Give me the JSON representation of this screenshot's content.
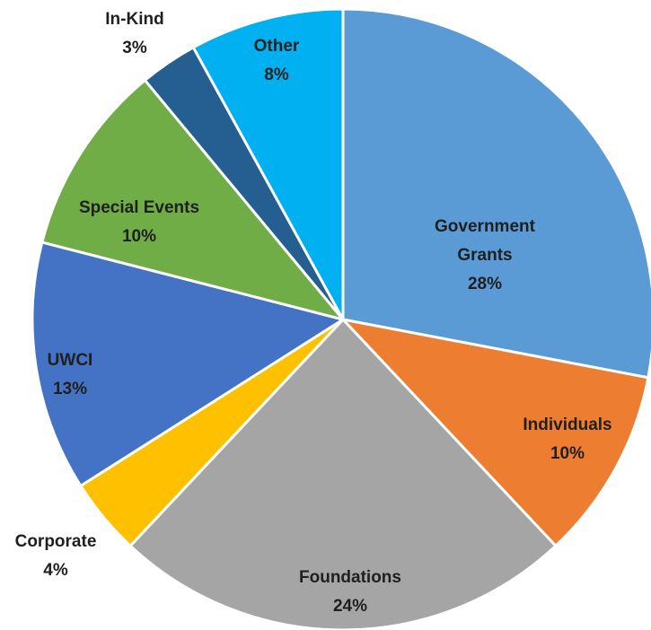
{
  "chart_data": {
    "type": "pie",
    "title": "",
    "start": "12 o'clock",
    "direction": "clockwise",
    "slice_border_color": "#ffffff",
    "label_color": "#1f1f1f",
    "slices": [
      {
        "name": "Government Grants",
        "label_lines": [
          "Government",
          "Grants"
        ],
        "value": 28,
        "value_label": "28%",
        "color": "#5B9BD5"
      },
      {
        "name": "Individuals",
        "label_lines": [
          "Individuals"
        ],
        "value": 10,
        "value_label": "10%",
        "color": "#ED7D31"
      },
      {
        "name": "Foundations",
        "label_lines": [
          "Foundations"
        ],
        "value": 24,
        "value_label": "24%",
        "color": "#A5A5A5"
      },
      {
        "name": "Corporate",
        "label_lines": [
          "Corporate"
        ],
        "value": 4,
        "value_label": "4%",
        "color": "#FFC000"
      },
      {
        "name": "UWCI",
        "label_lines": [
          "UWCI"
        ],
        "value": 13,
        "value_label": "13%",
        "color": "#4472C4"
      },
      {
        "name": "Special Events",
        "label_lines": [
          "Special Events"
        ],
        "value": 10,
        "value_label": "10%",
        "color": "#70AD47"
      },
      {
        "name": "In-Kind",
        "label_lines": [
          "In-Kind"
        ],
        "value": 3,
        "value_label": "3%",
        "color": "#255E91"
      },
      {
        "name": "Other",
        "label_lines": [
          "Other"
        ],
        "value": 8,
        "value_label": "8%",
        "color": "#00B0F0"
      }
    ]
  }
}
